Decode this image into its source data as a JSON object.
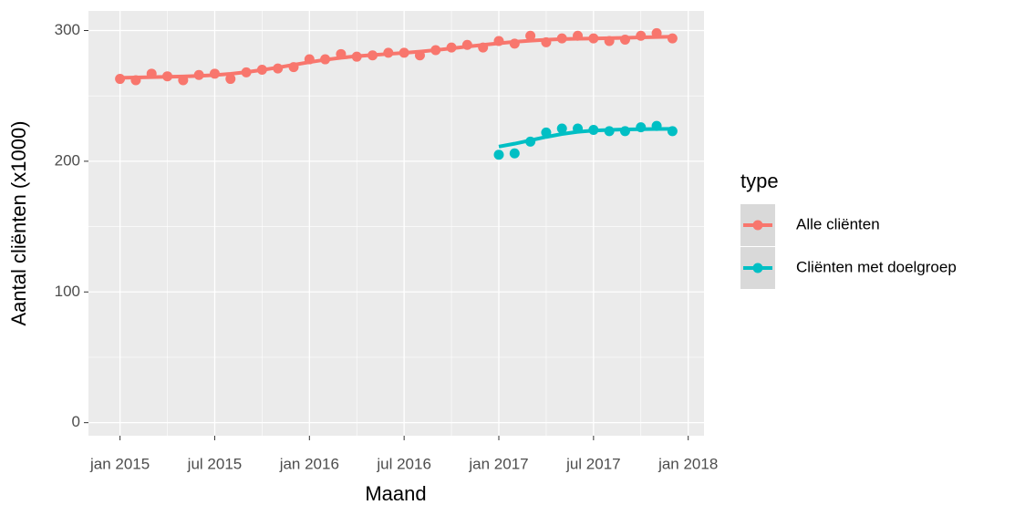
{
  "chart_data": {
    "type": "line",
    "x_label": "Maand",
    "y_label": "Aantal cliënten (x1000)",
    "legend_title": "type",
    "legend": "right",
    "grid": true,
    "x": [
      "2015-01",
      "2015-02",
      "2015-03",
      "2015-04",
      "2015-05",
      "2015-06",
      "2015-07",
      "2015-08",
      "2015-09",
      "2015-10",
      "2015-11",
      "2015-12",
      "2016-01",
      "2016-02",
      "2016-03",
      "2016-04",
      "2016-05",
      "2016-06",
      "2016-07",
      "2016-08",
      "2016-09",
      "2016-10",
      "2016-11",
      "2016-12",
      "2017-01",
      "2017-02",
      "2017-03",
      "2017-04",
      "2017-05",
      "2017-06",
      "2017-07",
      "2017-08",
      "2017-09",
      "2017-10",
      "2017-11",
      "2017-12"
    ],
    "series": [
      {
        "name": "Alle cliënten",
        "color": "#F8766D",
        "values": [
          263,
          262,
          267,
          265,
          262,
          266,
          267,
          263,
          268,
          270,
          271,
          272,
          278,
          278,
          282,
          280,
          281,
          283,
          283,
          281,
          285,
          287,
          289,
          287,
          292,
          290,
          296,
          291,
          294,
          296,
          294,
          292,
          293,
          296,
          298,
          294
        ]
      },
      {
        "name": "Cliënten met doelgroep",
        "color": "#00BFC4",
        "values": [
          null,
          null,
          null,
          null,
          null,
          null,
          null,
          null,
          null,
          null,
          null,
          null,
          null,
          null,
          null,
          null,
          null,
          null,
          null,
          null,
          null,
          null,
          null,
          null,
          205,
          206,
          215,
          222,
          225,
          225,
          224,
          223,
          223,
          226,
          227,
          223
        ]
      }
    ],
    "xlim": [
      "2014-11",
      "2018-02"
    ],
    "xticks": [
      {
        "value": "2015-01",
        "label": "jan 2015"
      },
      {
        "value": "2015-07",
        "label": "jul 2015"
      },
      {
        "value": "2016-01",
        "label": "jan 2016"
      },
      {
        "value": "2016-07",
        "label": "jul 2016"
      },
      {
        "value": "2017-01",
        "label": "jan 2017"
      },
      {
        "value": "2017-07",
        "label": "jul 2017"
      },
      {
        "value": "2018-01",
        "label": "jan 2018"
      }
    ],
    "ylim": [
      -10,
      315
    ],
    "yticks": [
      0,
      100,
      200,
      300
    ]
  }
}
